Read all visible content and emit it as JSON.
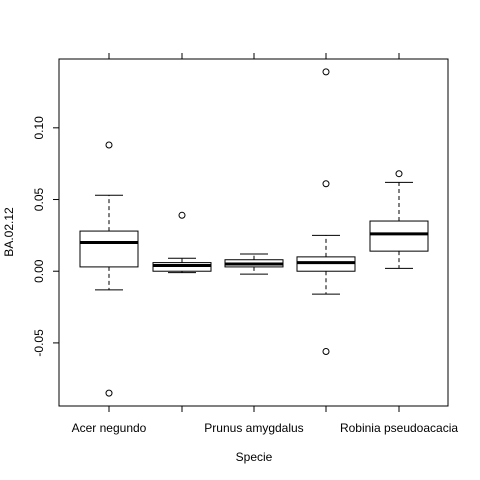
{
  "chart_data": {
    "type": "boxplot",
    "xlabel": "Specie",
    "ylabel": "BA.02.12",
    "ylim": [
      -0.094,
      0.148
    ],
    "y_ticks": [
      -0.05,
      0.0,
      0.05,
      0.1
    ],
    "y_tick_labels": [
      "-0.05",
      "0.00",
      "0.05",
      "0.10"
    ],
    "categories": [
      "Acer negundo",
      "",
      "Prunus amygdalus",
      "",
      "Robinia pseudoacacia"
    ],
    "boxes": [
      {
        "whisker_low": -0.013,
        "q1": 0.003,
        "median": 0.02,
        "q3": 0.028,
        "whisker_high": 0.053,
        "outliers": [
          0.088,
          -0.085
        ]
      },
      {
        "whisker_low": -0.001,
        "q1": 0.0,
        "median": 0.004,
        "q3": 0.006,
        "whisker_high": 0.009,
        "outliers": [
          0.039
        ]
      },
      {
        "whisker_low": -0.002,
        "q1": 0.003,
        "median": 0.005,
        "q3": 0.008,
        "whisker_high": 0.012,
        "outliers": []
      },
      {
        "whisker_low": -0.016,
        "q1": 0.0,
        "median": 0.006,
        "q3": 0.01,
        "whisker_high": 0.025,
        "outliers": [
          0.139,
          0.061,
          -0.056
        ]
      },
      {
        "whisker_low": 0.002,
        "q1": 0.014,
        "median": 0.026,
        "q3": 0.035,
        "whisker_high": 0.062,
        "outliers": [
          0.068
        ]
      }
    ]
  }
}
